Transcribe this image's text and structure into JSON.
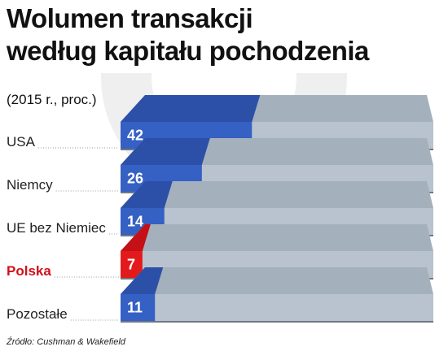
{
  "header": {
    "title_line1": "Wolumen transakcji",
    "title_line2": "według kapitału pochodzenia"
  },
  "subtitle": "(2015 r., proc.)",
  "source": "Źródło: Cushman & Wakefield",
  "colors": {
    "bar": "#3560c4",
    "bar_top": "#2c50a8",
    "highlight": "#e31a1c",
    "highlight_top": "#c41017",
    "track": "#b9c3cf",
    "track_top": "#a5b0bd",
    "circle": "#efefef",
    "leader": "#999999"
  },
  "chart_data": {
    "type": "bar",
    "orientation": "horizontal",
    "categories": [
      "USA",
      "Niemcy",
      "UE bez Niemiec",
      "Polska",
      "Pozostałe"
    ],
    "values": [
      42,
      26,
      14,
      7,
      11
    ],
    "value_labels": [
      "42",
      "26",
      "14",
      "7",
      "11"
    ],
    "highlight": "Polska",
    "xlim": [
      0,
      100
    ],
    "unit": "proc.",
    "grid": false,
    "legend": "none"
  }
}
